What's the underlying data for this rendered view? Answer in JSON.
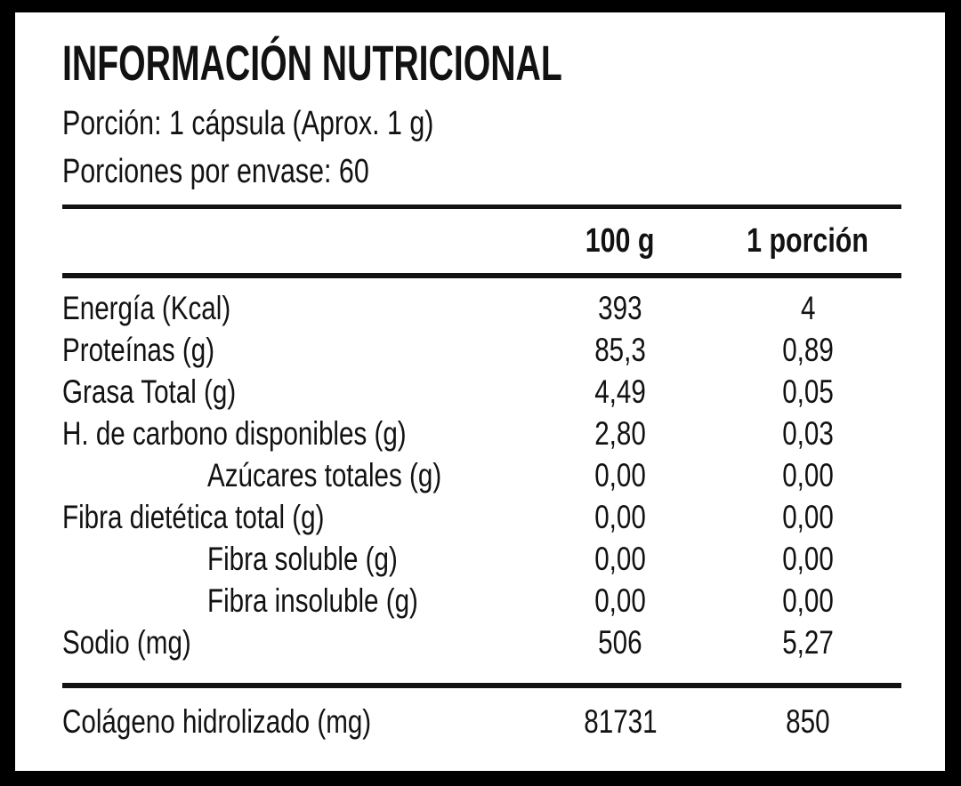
{
  "header": {
    "title": "INFORMACIÓN NUTRICIONAL",
    "portion_line": "Porción: 1 cápsula (Aprox. 1 g)",
    "servings_line": "Porciones por envase: 60"
  },
  "table": {
    "column_headers": {
      "per_100g": "100 g",
      "per_portion": "1 porción"
    },
    "rows": [
      {
        "label": "Energía (Kcal)",
        "indent": false,
        "per_100g": "393",
        "per_portion": "4"
      },
      {
        "label": "Proteínas (g)",
        "indent": false,
        "per_100g": "85,3",
        "per_portion": "0,89"
      },
      {
        "label": "Grasa Total (g)",
        "indent": false,
        "per_100g": "4,49",
        "per_portion": "0,05"
      },
      {
        "label": "H. de carbono disponibles (g)",
        "indent": false,
        "per_100g": "2,80",
        "per_portion": "0,03"
      },
      {
        "label": "Azúcares totales (g)",
        "indent": true,
        "per_100g": "0,00",
        "per_portion": "0,00"
      },
      {
        "label": "Fibra dietética total (g)",
        "indent": false,
        "per_100g": "0,00",
        "per_portion": "0,00"
      },
      {
        "label": "Fibra soluble (g)",
        "indent": true,
        "per_100g": "0,00",
        "per_portion": "0,00"
      },
      {
        "label": "Fibra insoluble (g)",
        "indent": true,
        "per_100g": "0,00",
        "per_portion": "0,00"
      },
      {
        "label": "Sodio (mg)",
        "indent": false,
        "per_100g": "506",
        "per_portion": "5,27"
      }
    ],
    "footer_row": {
      "label": "Colágeno hidrolizado (mg)",
      "per_100g": "81731",
      "per_portion": "850"
    }
  },
  "colors": {
    "frame": "#000000",
    "panel": "#ffffff",
    "text": "#121212"
  }
}
